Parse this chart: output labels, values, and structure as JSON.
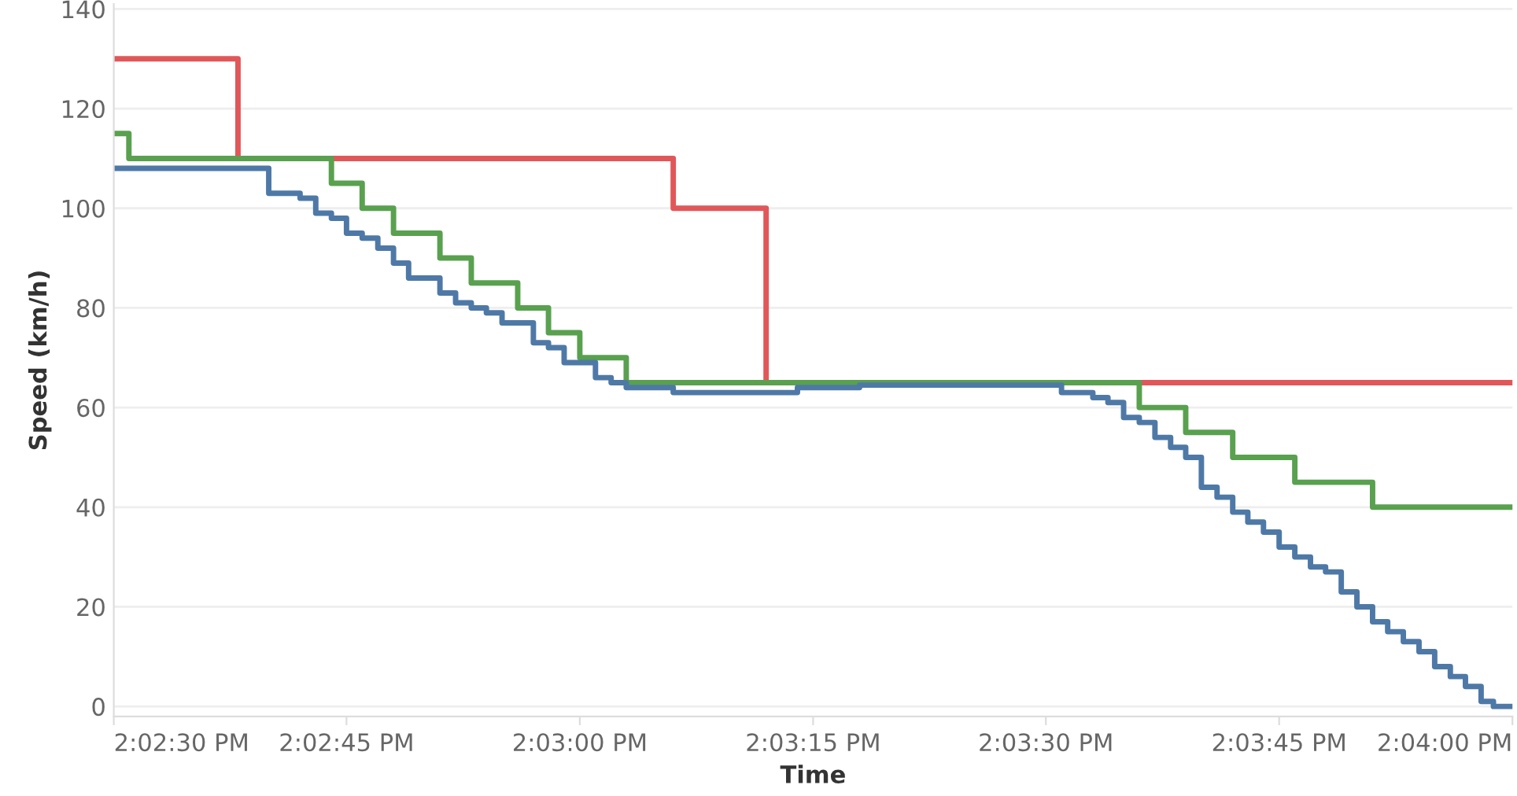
{
  "chart_data": {
    "type": "step",
    "xlabel": "Time",
    "ylabel": "Speed (km/h)",
    "xlim": [
      14.04167,
      14.06667
    ],
    "ylim": [
      -2,
      141
    ],
    "xticks": [
      {
        "value": 14.04167,
        "label": "2:02:30 PM"
      },
      {
        "value": 14.04583,
        "label": "2:02:45 PM"
      },
      {
        "value": 14.05,
        "label": "2:03:00 PM"
      },
      {
        "value": 14.05417,
        "label": "2:03:15 PM"
      },
      {
        "value": 14.05833,
        "label": "2:03:30 PM"
      },
      {
        "value": 14.0625,
        "label": "2:03:45 PM"
      },
      {
        "value": 14.06667,
        "label": "2:04:00 PM"
      }
    ],
    "yticks": [
      0,
      20,
      40,
      60,
      80,
      100,
      120,
      140
    ],
    "grid": "y",
    "legend": false,
    "series": [
      {
        "color": "#e15759",
        "x": [
          14.04167,
          14.04389,
          14.05167,
          14.05333,
          14.06667
        ],
        "values": [
          130,
          110,
          100,
          65,
          65
        ]
      },
      {
        "color": "#59a14f",
        "x": [
          14.04167,
          14.04194,
          14.04556,
          14.04611,
          14.04667,
          14.0475,
          14.04806,
          14.04889,
          14.04944,
          14.05,
          14.05083,
          14.06,
          14.06083,
          14.06167,
          14.06278,
          14.06417,
          14.06667
        ],
        "values": [
          115,
          110,
          105,
          100,
          95,
          90,
          85,
          80,
          75,
          70,
          65,
          60,
          55,
          50,
          45,
          40,
          40
        ]
      },
      {
        "color": "#4e79a7",
        "x": [
          14.04167,
          14.04444,
          14.045,
          14.04528,
          14.04556,
          14.04583,
          14.04611,
          14.04639,
          14.04667,
          14.04694,
          14.0475,
          14.04778,
          14.04806,
          14.04833,
          14.04861,
          14.04917,
          14.04944,
          14.04972,
          14.05028,
          14.05056,
          14.05083,
          14.05111,
          14.05139,
          14.05167,
          14.05389,
          14.055,
          14.05861,
          14.05917,
          14.05944,
          14.05972,
          14.06,
          14.06028,
          14.06056,
          14.06083,
          14.06111,
          14.06139,
          14.06167,
          14.06194,
          14.06222,
          14.0625,
          14.06278,
          14.06306,
          14.06333,
          14.06361,
          14.06389,
          14.06417,
          14.06444,
          14.06472,
          14.065,
          14.06528,
          14.06556,
          14.06583,
          14.06611,
          14.06633,
          14.06667
        ],
        "values": [
          108,
          103,
          102,
          99,
          98,
          95,
          94,
          92,
          89,
          86,
          83,
          81,
          80,
          79,
          77,
          73,
          72,
          69,
          66,
          65,
          64,
          64,
          64,
          63,
          64,
          64.5,
          63,
          62,
          61,
          58,
          57,
          54,
          52,
          50,
          44,
          42,
          39,
          37,
          35,
          32,
          30,
          28,
          27,
          23,
          20,
          17,
          15,
          13,
          11,
          8,
          6,
          4,
          1,
          0,
          0
        ]
      }
    ]
  }
}
